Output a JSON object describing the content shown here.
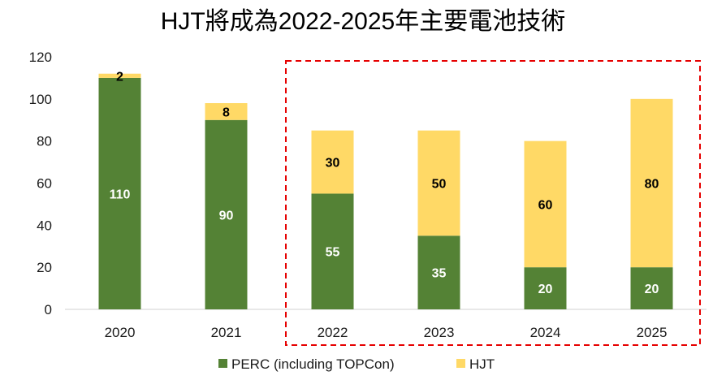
{
  "chart_data": {
    "type": "bar",
    "stacked": true,
    "title": "HJT將成為2022-2025年主要電池技術",
    "xlabel": "",
    "ylabel": "",
    "ylim": [
      0,
      120
    ],
    "yticks": [
      "0",
      "20",
      "40",
      "60",
      "80",
      "100",
      "120"
    ],
    "categories": [
      "2020",
      "2021",
      "2022",
      "2023",
      "2024",
      "2025"
    ],
    "series": [
      {
        "name": "PERC (including TOPCon)",
        "color": "#548235",
        "label_color": "#ffffff",
        "values": [
          110,
          90,
          55,
          35,
          20,
          20
        ]
      },
      {
        "name": "HJT",
        "color": "#FFD966",
        "label_color": "#000000",
        "values": [
          2,
          8,
          30,
          50,
          60,
          80
        ]
      }
    ],
    "grid": false,
    "legend_position": "bottom",
    "highlight": {
      "from_category": "2022",
      "to_category": "2025",
      "style": "dashed",
      "color": "#e60000"
    }
  }
}
